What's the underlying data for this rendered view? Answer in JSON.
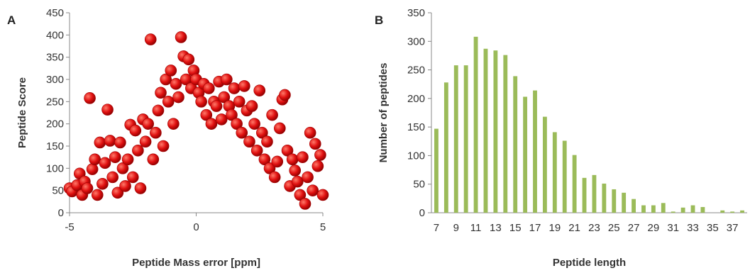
{
  "chart_data": [
    {
      "panel": "A",
      "type": "scatter",
      "xlabel": "Peptide Mass  error [ppm]",
      "ylabel": "Peptide Score",
      "xlim": [
        -5,
        5
      ],
      "ylim": [
        0,
        450
      ],
      "x_ticks": [
        "-5",
        "0",
        "5"
      ],
      "y_ticks": [
        "0",
        "50",
        "100",
        "150",
        "200",
        "250",
        "300",
        "350",
        "400",
        "450"
      ],
      "point_color": "#e01010",
      "point_color_dark": "#8a0000",
      "points": [
        [
          -5.0,
          55
        ],
        [
          -4.9,
          48
        ],
        [
          -4.7,
          62
        ],
        [
          -4.6,
          88
        ],
        [
          -4.5,
          40
        ],
        [
          -4.4,
          70
        ],
        [
          -4.3,
          55
        ],
        [
          -4.2,
          258
        ],
        [
          -4.1,
          98
        ],
        [
          -4.0,
          120
        ],
        [
          -3.9,
          40
        ],
        [
          -3.8,
          158
        ],
        [
          -3.7,
          65
        ],
        [
          -3.6,
          112
        ],
        [
          -3.5,
          232
        ],
        [
          -3.4,
          162
        ],
        [
          -3.3,
          80
        ],
        [
          -3.2,
          125
        ],
        [
          -3.1,
          45
        ],
        [
          -3.0,
          158
        ],
        [
          -2.9,
          100
        ],
        [
          -2.8,
          60
        ],
        [
          -2.7,
          120
        ],
        [
          -2.6,
          198
        ],
        [
          -2.5,
          80
        ],
        [
          -2.4,
          185
        ],
        [
          -2.3,
          140
        ],
        [
          -2.2,
          55
        ],
        [
          -2.1,
          210
        ],
        [
          -2.0,
          160
        ],
        [
          -1.9,
          200
        ],
        [
          -1.8,
          390
        ],
        [
          -1.7,
          120
        ],
        [
          -1.6,
          180
        ],
        [
          -1.5,
          230
        ],
        [
          -1.4,
          270
        ],
        [
          -1.3,
          150
        ],
        [
          -1.2,
          300
        ],
        [
          -1.1,
          250
        ],
        [
          -1.0,
          320
        ],
        [
          -0.9,
          200
        ],
        [
          -0.8,
          290
        ],
        [
          -0.7,
          260
        ],
        [
          -0.6,
          395
        ],
        [
          -0.5,
          352
        ],
        [
          -0.4,
          300
        ],
        [
          -0.3,
          345
        ],
        [
          -0.2,
          280
        ],
        [
          -0.1,
          320
        ],
        [
          0.0,
          300
        ],
        [
          0.1,
          270
        ],
        [
          0.2,
          250
        ],
        [
          0.3,
          290
        ],
        [
          0.4,
          220
        ],
        [
          0.5,
          280
        ],
        [
          0.6,
          200
        ],
        [
          0.7,
          250
        ],
        [
          0.8,
          240
        ],
        [
          0.9,
          295
        ],
        [
          1.0,
          210
        ],
        [
          1.1,
          260
        ],
        [
          1.2,
          300
        ],
        [
          1.3,
          240
        ],
        [
          1.4,
          220
        ],
        [
          1.5,
          280
        ],
        [
          1.6,
          200
        ],
        [
          1.7,
          250
        ],
        [
          1.8,
          180
        ],
        [
          1.9,
          285
        ],
        [
          2.0,
          230
        ],
        [
          2.1,
          160
        ],
        [
          2.2,
          240
        ],
        [
          2.3,
          200
        ],
        [
          2.4,
          140
        ],
        [
          2.5,
          275
        ],
        [
          2.6,
          180
        ],
        [
          2.7,
          120
        ],
        [
          2.8,
          160
        ],
        [
          2.9,
          100
        ],
        [
          3.0,
          220
        ],
        [
          3.1,
          80
        ],
        [
          3.2,
          115
        ],
        [
          3.3,
          190
        ],
        [
          3.4,
          255
        ],
        [
          3.5,
          265
        ],
        [
          3.6,
          140
        ],
        [
          3.7,
          60
        ],
        [
          3.8,
          120
        ],
        [
          3.9,
          95
        ],
        [
          4.0,
          70
        ],
        [
          4.1,
          40
        ],
        [
          4.2,
          125
        ],
        [
          4.3,
          20
        ],
        [
          4.4,
          80
        ],
        [
          4.5,
          180
        ],
        [
          4.6,
          50
        ],
        [
          4.7,
          155
        ],
        [
          4.8,
          105
        ],
        [
          4.9,
          130
        ],
        [
          5.0,
          40
        ]
      ]
    },
    {
      "panel": "B",
      "type": "bar",
      "xlabel": "Peptide length",
      "ylabel": "Number of peptides",
      "ylim": [
        0,
        350
      ],
      "y_ticks": [
        "0",
        "50",
        "100",
        "150",
        "200",
        "250",
        "300",
        "350"
      ],
      "bar_color": "#9bbb59",
      "categories": [
        7,
        8,
        9,
        10,
        11,
        12,
        13,
        14,
        15,
        16,
        17,
        18,
        19,
        20,
        21,
        22,
        23,
        24,
        25,
        26,
        27,
        28,
        29,
        30,
        31,
        32,
        33,
        34,
        35,
        36,
        37,
        38
      ],
      "values": [
        147,
        228,
        258,
        258,
        308,
        287,
        284,
        276,
        239,
        203,
        214,
        168,
        141,
        126,
        101,
        61,
        66,
        51,
        41,
        35,
        24,
        13,
        13,
        17,
        2,
        9,
        13,
        10,
        0,
        4,
        2,
        4
      ],
      "tick_labels": [
        "7",
        "9",
        "11",
        "13",
        "15",
        "17",
        "19",
        "21",
        "23",
        "25",
        "27",
        "29",
        "31",
        "33",
        "35",
        "37"
      ]
    }
  ]
}
